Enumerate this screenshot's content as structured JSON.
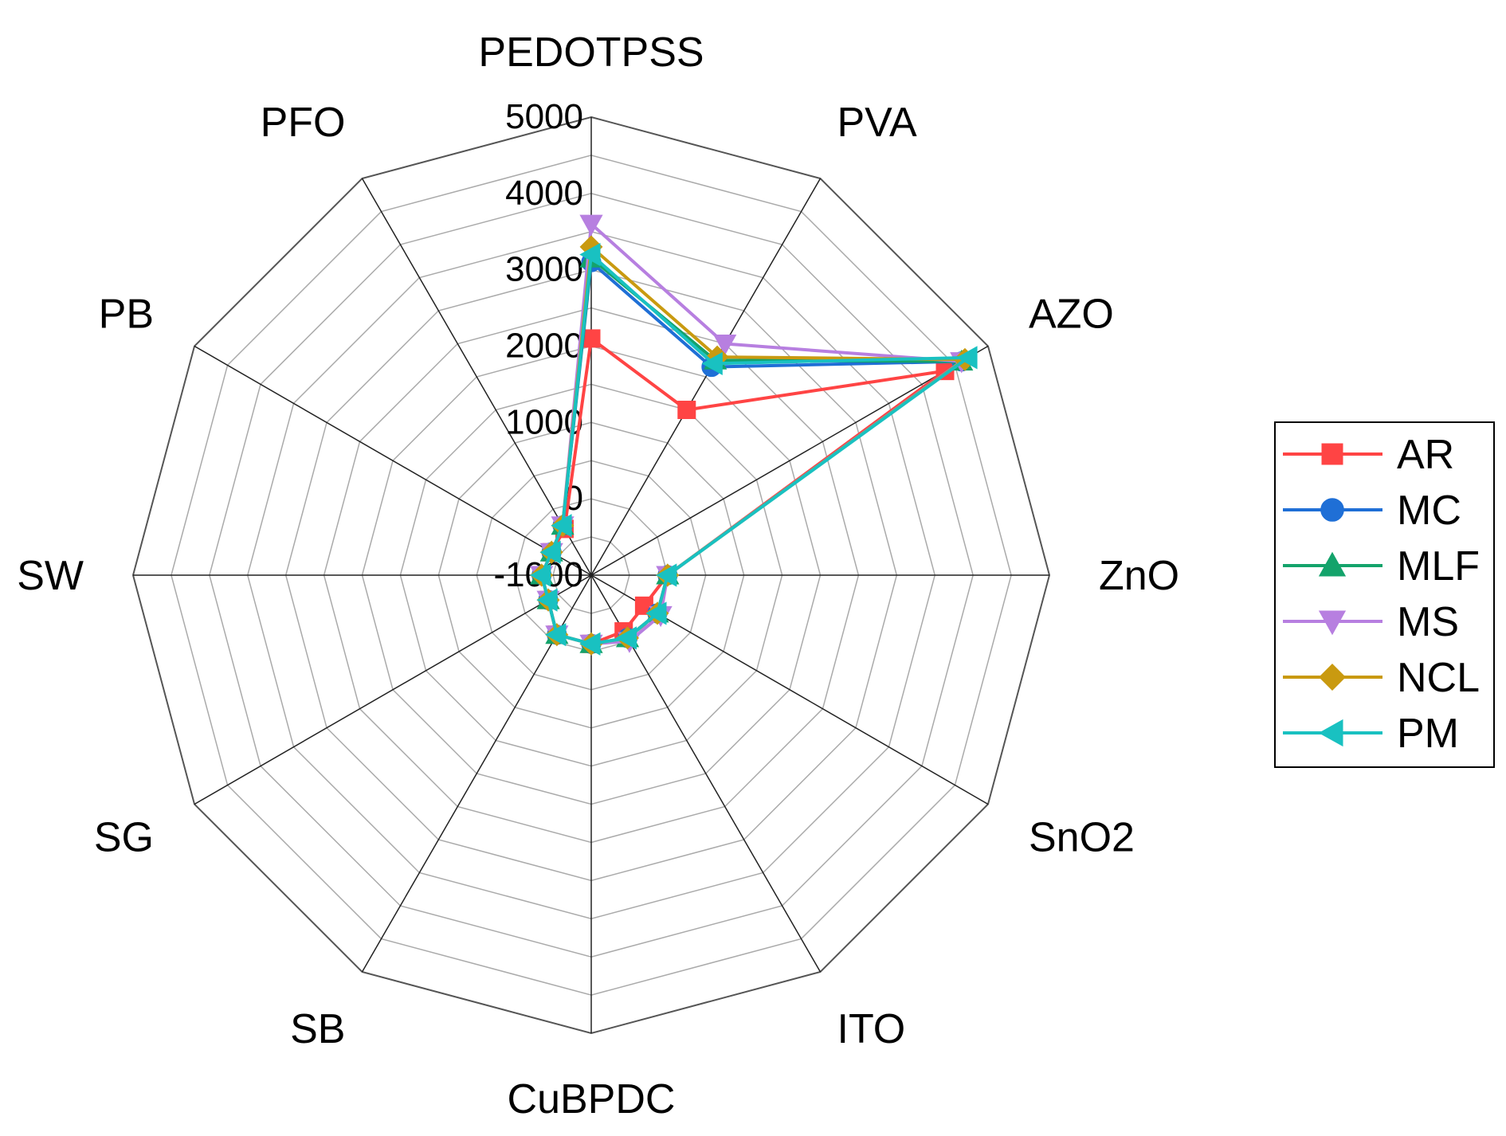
{
  "chart_data": {
    "type": "radar",
    "title": "",
    "axes": [
      "PEDOTPSS",
      "PVA",
      "AZO",
      "ZnO",
      "SnO2",
      "ITO",
      "CuBPDC",
      "SB",
      "SG",
      "SW",
      "PB",
      "PFO"
    ],
    "rlim": [
      -1000,
      5000
    ],
    "ticks": [
      -1000,
      0,
      1000,
      2000,
      3000,
      4000,
      5000
    ],
    "tick_labels": [
      "-1000",
      "0",
      "1000",
      "2000",
      "3000",
      "4000",
      "5000"
    ],
    "grid": true,
    "legend_position": "right",
    "series": [
      {
        "name": "AR",
        "color": "#ff4444",
        "marker": "square",
        "values": [
          2100,
          1500,
          4350,
          0,
          -200,
          -150,
          -100,
          -100,
          -350,
          -350,
          -400,
          -300
        ]
      },
      {
        "name": "MC",
        "color": "#1f6fd6",
        "marker": "circle",
        "values": [
          3100,
          2150,
          4600,
          0,
          0,
          -50,
          -100,
          -100,
          -350,
          -350,
          -400,
          -250
        ]
      },
      {
        "name": "MLF",
        "color": "#14a36b",
        "marker": "triangle-up",
        "values": [
          3150,
          2250,
          4600,
          0,
          0,
          -50,
          -100,
          -100,
          -350,
          -350,
          -400,
          -250
        ]
      },
      {
        "name": "MS",
        "color": "#b77fe0",
        "marker": "triangle-down",
        "values": [
          3600,
          2500,
          4600,
          0,
          50,
          0,
          -100,
          -100,
          -350,
          -350,
          -400,
          -250
        ]
      },
      {
        "name": "NCL",
        "color": "#c99a10",
        "marker": "diamond",
        "values": [
          3300,
          2300,
          4650,
          0,
          0,
          -50,
          -100,
          -100,
          -350,
          -350,
          -400,
          -250
        ]
      },
      {
        "name": "PM",
        "color": "#19c1c1",
        "marker": "triangle-left",
        "values": [
          3200,
          2200,
          4700,
          0,
          0,
          -50,
          -100,
          -100,
          -350,
          -350,
          -400,
          -250
        ]
      }
    ]
  }
}
